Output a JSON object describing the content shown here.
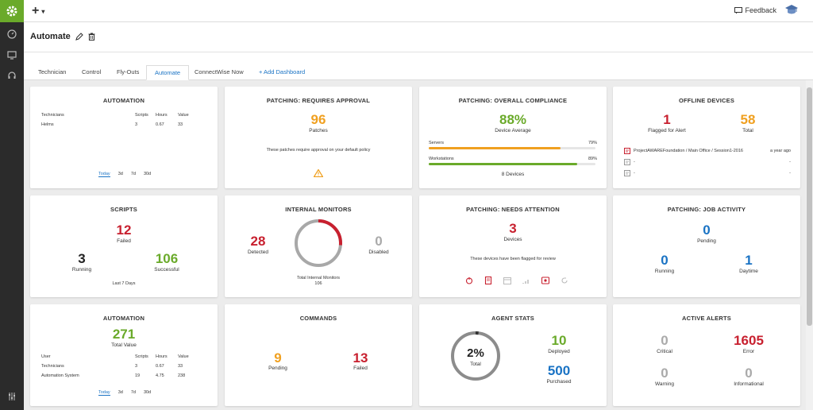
{
  "topbar": {
    "feedback_label": "Feedback"
  },
  "header": {
    "title": "Automate"
  },
  "tabs": [
    {
      "label": "Technician"
    },
    {
      "label": "Control"
    },
    {
      "label": "Fly-Outs"
    },
    {
      "label": "Automate"
    },
    {
      "label": "ConnectWise Now"
    },
    {
      "label": "+ Add Dashboard"
    }
  ],
  "automation1": {
    "title": "AUTOMATION",
    "columns": [
      "Technicians",
      "Scripts",
      "Hours",
      "Value"
    ],
    "rows": [
      {
        "name": "Helms",
        "scripts": "3",
        "hours": "0.67",
        "value": "33"
      }
    ],
    "ranges": [
      "Today",
      "3d",
      "7d",
      "30d"
    ]
  },
  "patching_approval": {
    "title": "PATCHING: REQUIRES APPROVAL",
    "value": "96",
    "label": "Patches",
    "note": "These patches require approval on your default policy"
  },
  "compliance": {
    "title": "PATCHING: OVERALL COMPLIANCE",
    "value": "88%",
    "label": "Device Average",
    "servers": {
      "label": "Servers",
      "pct_text": "79%",
      "pct": 0.79
    },
    "workstations": {
      "label": "Workstations",
      "pct_text": "89%",
      "pct": 0.89
    },
    "devices": "8 Devices"
  },
  "offline": {
    "title": "OFFLINE DEVICES",
    "flagged": "1",
    "flagged_label": "Flagged for Alert",
    "total": "58",
    "total_label": "Total",
    "rows": [
      {
        "name": "ProjectAWAREFoundation / Main Office / Session1-2016",
        "time": "a year ago"
      },
      {
        "name": "-",
        "time": "-"
      },
      {
        "name": "-",
        "time": "-"
      }
    ]
  },
  "scripts": {
    "title": "SCRIPTS",
    "failed": "12",
    "failed_label": "Failed",
    "running": "3",
    "running_label": "Running",
    "successful": "106",
    "successful_label": "Successful",
    "period": "Last 7 Days"
  },
  "internal_monitors": {
    "title": "INTERNAL MONITORS",
    "detected": "28",
    "detected_label": "Detected",
    "disabled": "0",
    "disabled_label": "Disabled",
    "total_label": "Total Internal Monitors",
    "total": "106",
    "detected_fraction": 0.264
  },
  "needs_attention": {
    "title": "PATCHING: NEEDS ATTENTION",
    "value": "3",
    "label": "Devices",
    "note": "These devices have been flagged for review"
  },
  "job_activity": {
    "title": "PATCHING: JOB ACTIVITY",
    "pending": "0",
    "pending_label": "Pending",
    "running": "0",
    "running_label": "Running",
    "daytime": "1",
    "daytime_label": "Daytime"
  },
  "automation2": {
    "title": "AUTOMATION",
    "total": "271",
    "total_label": "Total Value",
    "columns": [
      "User",
      "Scripts",
      "Hours",
      "Value"
    ],
    "rows": [
      {
        "name": "Technicians",
        "scripts": "3",
        "hours": "0.67",
        "value": "33"
      },
      {
        "name": "Automation System",
        "scripts": "19",
        "hours": "4.75",
        "value": "238"
      }
    ],
    "ranges": [
      "Today",
      "3d",
      "7d",
      "30d"
    ]
  },
  "commands": {
    "title": "COMMANDS",
    "pending": "9",
    "pending_label": "Pending",
    "failed": "13",
    "failed_label": "Failed"
  },
  "agent_stats": {
    "title": "AGENT STATS",
    "pct": "2%",
    "pct_label": "Total",
    "deployed": "10",
    "deployed_label": "Deployed",
    "purchased": "500",
    "purchased_label": "Purchased",
    "fraction": 0.02
  },
  "active_alerts": {
    "title": "ACTIVE ALERTS",
    "critical": "0",
    "critical_label": "Critical",
    "error": "1605",
    "error_label": "Error",
    "warning": "0",
    "warning_label": "Warning",
    "informational": "0",
    "informational_label": "Informational"
  },
  "colors": {
    "accent": "#6aaa2a",
    "blue": "#1a73c4",
    "red": "#c8202f",
    "orange": "#f0a020"
  }
}
